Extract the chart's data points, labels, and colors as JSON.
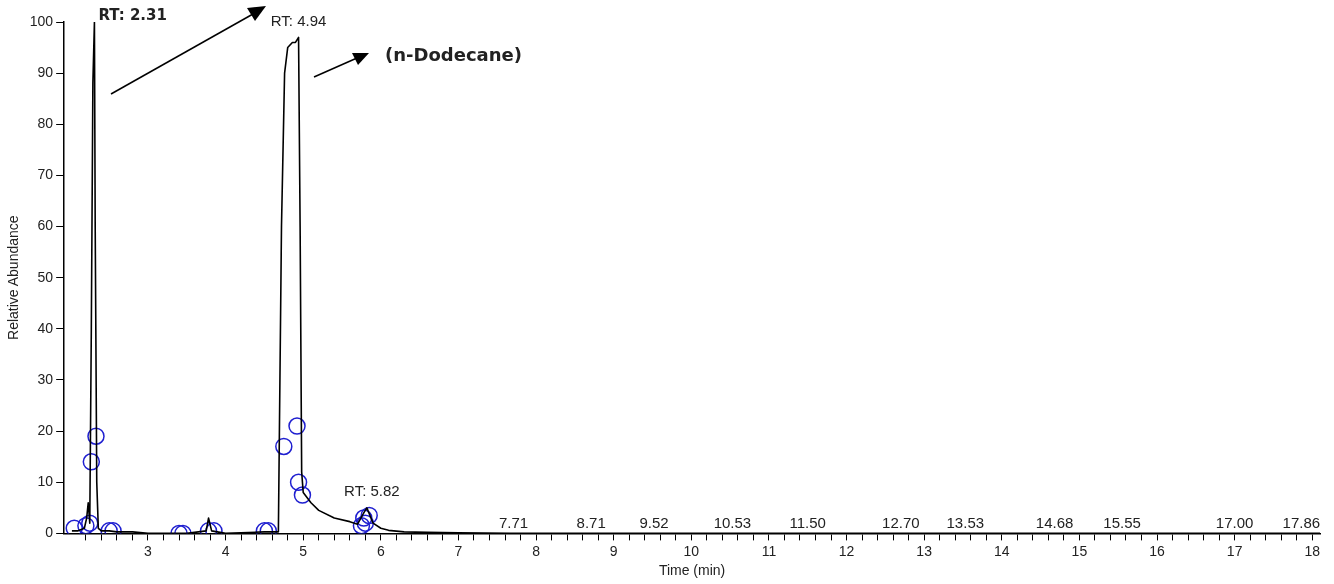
{
  "chart_data": {
    "type": "line",
    "xlabel": "Time (min)",
    "ylabel": "Relative Abundance",
    "xlim": [
      1.92,
      18.1
    ],
    "ylim": [
      0,
      100
    ],
    "yticks": [
      0,
      10,
      20,
      30,
      40,
      50,
      60,
      70,
      80,
      90,
      100
    ],
    "xticks": [
      {
        "value": 2.2,
        "label": null
      },
      {
        "value": 2.4,
        "label": null
      },
      {
        "value": 2.6,
        "label": null
      },
      {
        "value": 2.8,
        "label": null
      },
      3,
      {
        "value": 3.2,
        "label": null
      },
      {
        "value": 3.4,
        "label": null
      },
      {
        "value": 3.6,
        "label": null
      },
      {
        "value": 3.8,
        "label": null
      },
      4,
      {
        "value": 4.2,
        "label": null
      },
      {
        "value": 4.4,
        "label": null
      },
      {
        "value": 4.6,
        "label": null
      },
      {
        "value": 4.8,
        "label": null
      },
      5,
      {
        "value": 5.2,
        "label": null
      },
      {
        "value": 5.4,
        "label": null
      },
      {
        "value": 5.6,
        "label": null
      },
      {
        "value": 5.8,
        "label": null
      },
      6,
      {
        "value": 6.2,
        "label": null
      },
      {
        "value": 6.4,
        "label": null
      },
      {
        "value": 6.6,
        "label": null
      },
      {
        "value": 6.8,
        "label": null
      },
      7,
      {
        "value": 7.2,
        "label": null
      },
      {
        "value": 7.4,
        "label": null
      },
      {
        "value": 7.6,
        "label": null
      },
      {
        "value": 7.8,
        "label": null
      },
      8,
      {
        "value": 8.2,
        "label": null
      },
      {
        "value": 8.4,
        "label": null
      },
      {
        "value": 8.6,
        "label": null
      },
      {
        "value": 8.8,
        "label": null
      },
      9,
      {
        "value": 9.2,
        "label": null
      },
      {
        "value": 9.4,
        "label": null
      },
      {
        "value": 9.6,
        "label": null
      },
      {
        "value": 9.8,
        "label": null
      },
      10,
      {
        "value": 10.2,
        "label": null
      },
      {
        "value": 10.4,
        "label": null
      },
      {
        "value": 10.6,
        "label": null
      },
      {
        "value": 10.8,
        "label": null
      },
      11,
      {
        "value": 11.2,
        "label": null
      },
      {
        "value": 11.4,
        "label": null
      },
      {
        "value": 11.6,
        "label": null
      },
      {
        "value": 11.8,
        "label": null
      },
      12,
      {
        "value": 12.2,
        "label": null
      },
      {
        "value": 12.4,
        "label": null
      },
      {
        "value": 12.6,
        "label": null
      },
      {
        "value": 12.8,
        "label": null
      },
      13,
      {
        "value": 13.2,
        "label": null
      },
      {
        "value": 13.4,
        "label": null
      },
      {
        "value": 13.6,
        "label": null
      },
      {
        "value": 13.8,
        "label": null
      },
      14,
      {
        "value": 14.2,
        "label": null
      },
      {
        "value": 14.4,
        "label": null
      },
      {
        "value": 14.6,
        "label": null
      },
      {
        "value": 14.8,
        "label": null
      },
      15,
      {
        "value": 15.2,
        "label": null
      },
      {
        "value": 15.4,
        "label": null
      },
      {
        "value": 15.6,
        "label": null
      },
      {
        "value": 15.8,
        "label": null
      },
      16,
      {
        "value": 16.2,
        "label": null
      },
      {
        "value": 16.4,
        "label": null
      },
      {
        "value": 16.6,
        "label": null
      },
      {
        "value": 16.8,
        "label": null
      },
      17,
      {
        "value": 17.2,
        "label": null
      },
      {
        "value": 17.4,
        "label": null
      },
      {
        "value": 17.6,
        "label": null
      },
      {
        "value": 17.8,
        "label": null
      },
      18
    ],
    "series": [
      {
        "type": "line",
        "color": "#000000",
        "x": [
          2.02,
          2.1,
          2.18,
          2.21,
          2.23,
          2.25,
          2.27,
          2.29,
          2.31,
          2.32,
          2.34,
          2.36,
          2.4,
          2.5,
          2.6,
          2.8,
          3.0,
          3.5,
          3.75,
          3.78,
          3.82,
          4.0,
          4.5,
          4.68,
          4.72,
          4.76,
          4.8,
          4.86,
          4.9,
          4.94,
          4.96,
          4.98,
          5.0,
          5.1,
          5.2,
          5.4,
          5.6,
          5.7,
          5.78,
          5.82,
          5.86,
          5.9,
          6.0,
          6.1,
          6.3,
          6.6,
          7.0,
          8.0,
          10.0,
          14.0,
          18.1
        ],
        "values": [
          0.5,
          0.5,
          1,
          3,
          6,
          2,
          40,
          88,
          100,
          60,
          10,
          1,
          0.5,
          0.5,
          0.3,
          0.3,
          0,
          0,
          0.5,
          3,
          0.5,
          0,
          0.3,
          0.3,
          60,
          90,
          95,
          96,
          96,
          97,
          60,
          12,
          8,
          6,
          4.5,
          3,
          2.3,
          1.8,
          4,
          5,
          3.5,
          2,
          1,
          0.6,
          0.3,
          0.2,
          0.1,
          0,
          0,
          0,
          0
        ]
      },
      {
        "type": "scatter",
        "color": "#1f1fd0",
        "marker": "circle",
        "x": [
          2.05,
          2.2,
          2.25,
          2.27,
          2.33,
          2.5,
          2.55,
          3.4,
          3.45,
          3.78,
          3.85,
          4.5,
          4.55,
          4.75,
          4.92,
          4.94,
          4.99,
          5.75,
          5.78,
          5.8,
          5.85
        ],
        "values": [
          1,
          1.5,
          2,
          14,
          19,
          0.5,
          0.5,
          0,
          0,
          0.5,
          0.5,
          0.5,
          0.5,
          17,
          21,
          10,
          7.5,
          1.5,
          3,
          2,
          3.5
        ]
      }
    ],
    "annotations": [
      {
        "text": "RT: 2.31",
        "x": 2.31,
        "y": 100
      },
      {
        "text": "RT: 4.94",
        "x": 4.94,
        "y": 97
      },
      {
        "text": "RT: 5.82",
        "x": 5.82,
        "y": 5
      },
      "(n-Dodecane)",
      {
        "text": "7.71",
        "x": 7.71,
        "y": 0
      },
      {
        "text": "8.71",
        "x": 8.71,
        "y": 0
      },
      {
        "text": "9.52",
        "x": 9.52,
        "y": 0
      },
      {
        "text": "10.53",
        "x": 10.53,
        "y": 0
      },
      {
        "text": "11.50",
        "x": 11.5,
        "y": 0
      },
      {
        "text": "12.70",
        "x": 12.7,
        "y": 0
      },
      {
        "text": "13.53",
        "x": 13.53,
        "y": 0
      },
      {
        "text": "14.68",
        "x": 14.68,
        "y": 0
      },
      {
        "text": "15.55",
        "x": 15.55,
        "y": 0
      },
      {
        "text": "17.00",
        "x": 17.0,
        "y": 0
      },
      {
        "text": "17.86",
        "x": 17.86,
        "y": 0
      }
    ],
    "grid": false,
    "legend": false
  }
}
